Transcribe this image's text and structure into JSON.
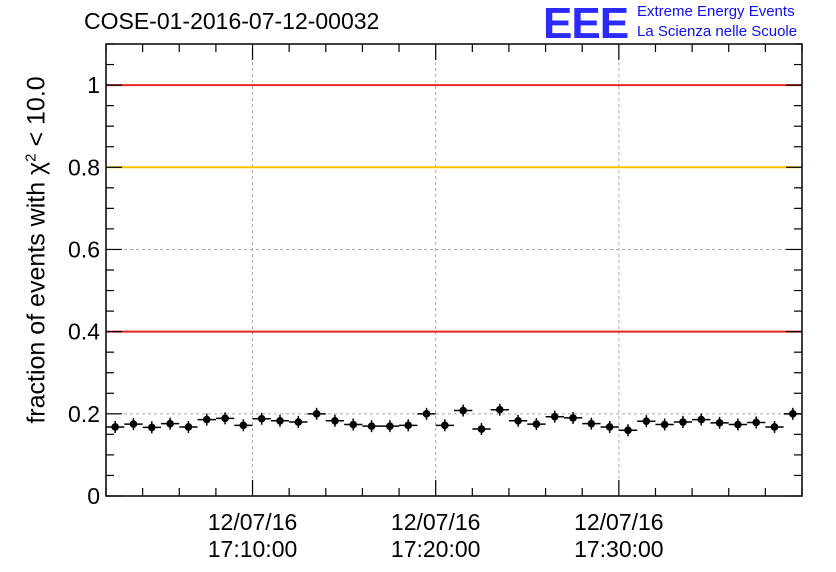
{
  "chart_data": {
    "type": "scatter",
    "title": "COSE-01-2016-07-12-00032",
    "ylabel_prefix": "fraction of events with ",
    "ylabel_chi": "χ",
    "ylabel_exp": "2",
    "ylabel_suffix": " < 10.0",
    "xlabel": "",
    "ylim": [
      0,
      1.1
    ],
    "yticks": [
      "0",
      "0.2",
      "0.4",
      "0.6",
      "0.8",
      "1"
    ],
    "ytick_values": [
      0,
      0.2,
      0.4,
      0.6,
      0.8,
      1.0
    ],
    "xtick_minutes": [
      10,
      20,
      30
    ],
    "xtick_dates": [
      "12/07/16",
      "12/07/16",
      "12/07/16"
    ],
    "xtick_times": [
      "17:10:00",
      "17:20:00",
      "17:30:00"
    ],
    "x_start_minute": 2,
    "x_end_minute": 40,
    "grid": true,
    "reference_lines": [
      {
        "y": 1.0,
        "color": "#e8261a"
      },
      {
        "y": 0.8,
        "color": "#f5c000"
      },
      {
        "y": 0.4,
        "color": "#e8261a"
      }
    ],
    "values": [
      0.168,
      0.175,
      0.167,
      0.176,
      0.168,
      0.186,
      0.189,
      0.172,
      0.188,
      0.183,
      0.18,
      0.2,
      0.183,
      0.174,
      0.17,
      0.17,
      0.172,
      0.2,
      0.172,
      0.208,
      0.163,
      0.21,
      0.183,
      0.175,
      0.193,
      0.19,
      0.176,
      0.168,
      0.16,
      0.182,
      0.174,
      0.18,
      0.186,
      0.178,
      0.174,
      0.179,
      0.168,
      0.2
    ]
  },
  "logo": {
    "mark": "EEE",
    "line1": "Extreme Energy Events",
    "line2": "La Scienza nelle Scuole"
  }
}
